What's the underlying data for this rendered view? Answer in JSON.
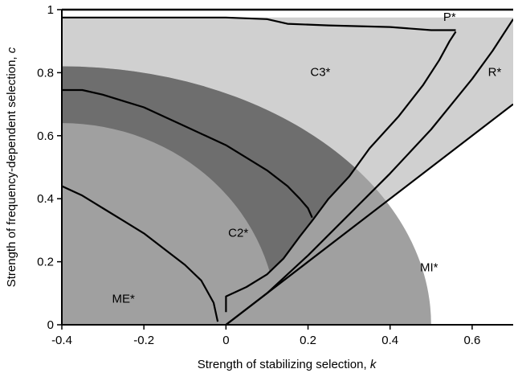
{
  "chart_data": {
    "type": "area",
    "xlabel": "Strength of stabilizing selection, ",
    "xlabel_var": "k",
    "ylabel": "Strength of frequency-dependent selection, ",
    "ylabel_var": "c",
    "xlim": [
      -0.4,
      0.7
    ],
    "ylim": [
      0,
      1
    ],
    "x_ticks": [
      -0.4,
      -0.2,
      0,
      0.2,
      0.4,
      0.6
    ],
    "x_tick_labels": [
      "-0.4",
      "-0.2",
      "0",
      "0.2",
      "0.4",
      "0.6"
    ],
    "y_ticks": [
      0,
      0.2,
      0.4,
      0.6,
      0.8,
      1
    ],
    "y_tick_labels": [
      "0",
      "0.2",
      "0.4",
      "0.6",
      "0.8",
      "1"
    ],
    "grid": false,
    "colors": {
      "light_region": "#d0d0d0",
      "mid_region": "#a0a0a0",
      "dark_band": "#6e6e6e",
      "boundary_line": "#000000"
    },
    "shaded_regions": {
      "outer_light": {
        "lower_line": [
          [
            0,
            0
          ],
          [
            0.7,
            0.7
          ]
        ],
        "upper_line": [
          [
            0,
            0
          ],
          [
            0.7,
            0.97
          ]
        ],
        "top": 0.975
      },
      "mi_ellipse": {
        "x_extent": [
          -0.4,
          0.5
        ],
        "y_intercept_at_k_min": 0.82
      },
      "inner_ellipse": {
        "x_extent": [
          -0.4,
          0.125
        ],
        "y_intercept_at_k_min": 0.64
      }
    },
    "boundary_curves": [
      {
        "id": "ME-boundary",
        "points": [
          [
            -0.4,
            0.44
          ],
          [
            -0.35,
            0.41
          ],
          [
            -0.3,
            0.37
          ],
          [
            -0.25,
            0.33
          ],
          [
            -0.2,
            0.29
          ],
          [
            -0.15,
            0.24
          ],
          [
            -0.1,
            0.19
          ],
          [
            -0.06,
            0.14
          ],
          [
            -0.03,
            0.07
          ],
          [
            -0.02,
            0.01
          ]
        ]
      },
      {
        "id": "C2-boundary",
        "points": [
          [
            -0.4,
            0.745
          ],
          [
            -0.35,
            0.745
          ],
          [
            -0.3,
            0.73
          ],
          [
            -0.25,
            0.71
          ],
          [
            -0.2,
            0.69
          ],
          [
            -0.15,
            0.66
          ],
          [
            -0.1,
            0.63
          ],
          [
            -0.05,
            0.6
          ],
          [
            0.0,
            0.57
          ],
          [
            0.05,
            0.53
          ],
          [
            0.1,
            0.49
          ],
          [
            0.15,
            0.44
          ],
          [
            0.18,
            0.4
          ],
          [
            0.2,
            0.37
          ],
          [
            0.21,
            0.34
          ]
        ]
      },
      {
        "id": "C3-boundary",
        "points": [
          [
            0.0,
            0.04
          ],
          [
            0.0,
            0.09
          ],
          [
            0.05,
            0.12
          ],
          [
            0.1,
            0.16
          ],
          [
            0.14,
            0.21
          ],
          [
            0.18,
            0.28
          ],
          [
            0.21,
            0.33
          ],
          [
            0.25,
            0.4
          ],
          [
            0.3,
            0.47
          ],
          [
            0.35,
            0.56
          ],
          [
            0.42,
            0.66
          ],
          [
            0.48,
            0.76
          ],
          [
            0.52,
            0.84
          ],
          [
            0.545,
            0.9
          ],
          [
            0.56,
            0.93
          ]
        ]
      },
      {
        "id": "P-top-boundary",
        "points": [
          [
            -0.4,
            0.975
          ],
          [
            0.0,
            0.975
          ],
          [
            0.1,
            0.97
          ],
          [
            0.15,
            0.955
          ],
          [
            0.25,
            0.95
          ],
          [
            0.4,
            0.945
          ],
          [
            0.5,
            0.935
          ],
          [
            0.56,
            0.935
          ]
        ]
      },
      {
        "id": "R-boundary",
        "points": [
          [
            0.0,
            0.0
          ],
          [
            0.1,
            0.1
          ],
          [
            0.2,
            0.22
          ],
          [
            0.3,
            0.35
          ],
          [
            0.4,
            0.48
          ],
          [
            0.5,
            0.62
          ],
          [
            0.6,
            0.78
          ],
          [
            0.65,
            0.87
          ],
          [
            0.7,
            0.97
          ]
        ]
      },
      {
        "id": "MI-upper-line",
        "points": [
          [
            0.0,
            0.0
          ],
          [
            0.7,
            0.7
          ]
        ]
      }
    ],
    "region_labels": [
      {
        "text": "P*",
        "k": 0.545,
        "c": 0.975
      },
      {
        "text": "C3*",
        "k": 0.23,
        "c": 0.8
      },
      {
        "text": "R*",
        "k": 0.655,
        "c": 0.8
      },
      {
        "text": "C2*",
        "k": 0.03,
        "c": 0.29
      },
      {
        "text": "MI*",
        "k": 0.495,
        "c": 0.18
      },
      {
        "text": "ME*",
        "k": -0.25,
        "c": 0.08
      }
    ]
  }
}
